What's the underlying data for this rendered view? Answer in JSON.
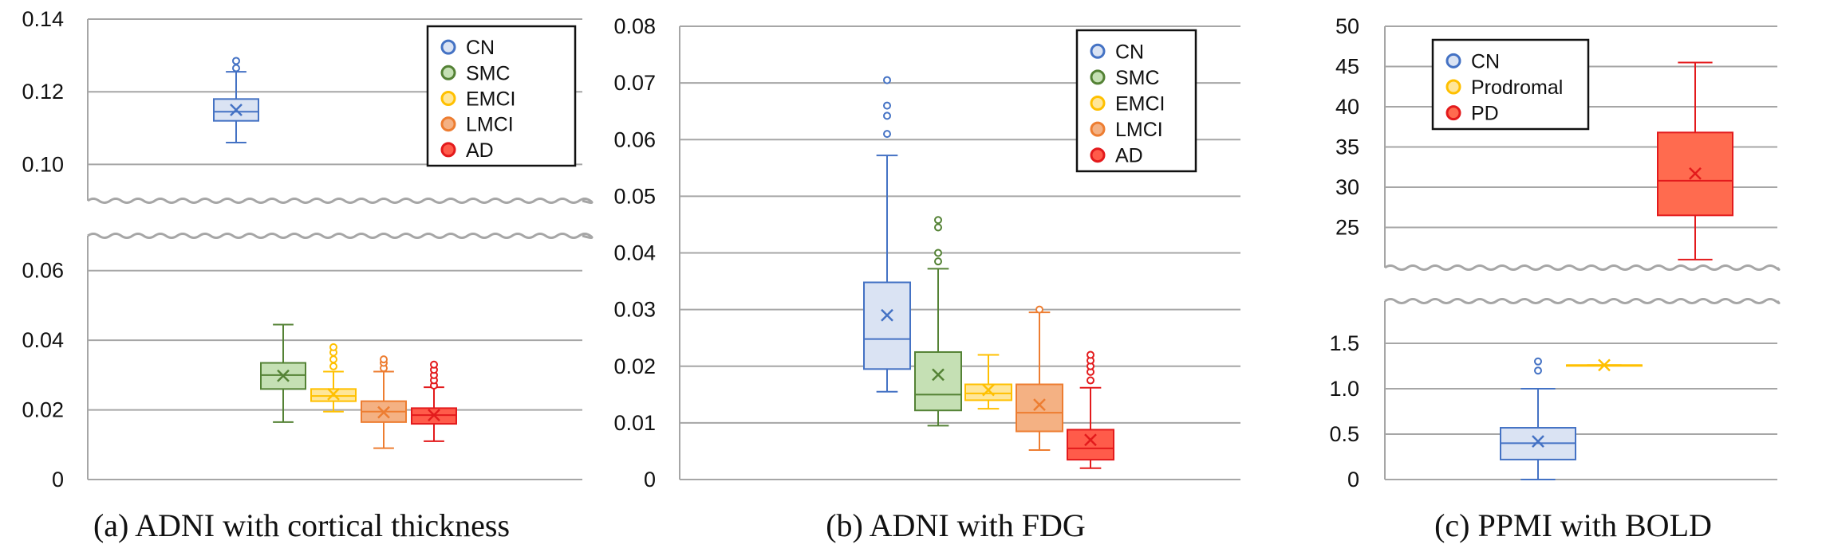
{
  "colors": {
    "CN": {
      "stroke": "#4472C4",
      "fill": "#DAE3F3"
    },
    "SMC": {
      "stroke": "#548235",
      "fill": "#C5E0B4"
    },
    "EMCI": {
      "stroke": "#FFC000",
      "fill": "#FFE699"
    },
    "LMCI": {
      "stroke": "#ED7D31",
      "fill": "#F4B183"
    },
    "AD": {
      "stroke": "#E31A1C",
      "fill": "#FF5B4A"
    },
    "Prodromal": {
      "stroke": "#FFC000",
      "fill": "#FFE699"
    },
    "PD": {
      "stroke": "#E31A1C",
      "fill": "#FF6B4F"
    }
  },
  "chart_data": [
    {
      "type": "box",
      "caption": "(a) ADNI with cortical thickness",
      "axis_break": true,
      "y_upper": {
        "range": [
          0.09,
          0.14
        ],
        "ticks": [
          "0.14",
          "0.12",
          "0.10"
        ],
        "tick_values": [
          0.14,
          0.12,
          0.1
        ]
      },
      "y_lower": {
        "range": [
          0,
          0.07
        ],
        "ticks": [
          "0.06",
          "0.04",
          "0.02",
          "0"
        ],
        "tick_values": [
          0.06,
          0.04,
          0.02,
          0
        ]
      },
      "legend": [
        "CN",
        "SMC",
        "EMCI",
        "LMCI",
        "AD"
      ],
      "series": [
        {
          "name": "CN",
          "min": 0.106,
          "q1": 0.112,
          "median": 0.1145,
          "q3": 0.118,
          "max": 0.1255,
          "mean": 0.115,
          "outliers": [
            0.1265,
            0.1285
          ]
        },
        {
          "name": "SMC",
          "min": 0.0165,
          "q1": 0.026,
          "median": 0.03,
          "q3": 0.0335,
          "max": 0.0445,
          "mean": 0.0298,
          "outliers": []
        },
        {
          "name": "EMCI",
          "min": 0.0195,
          "q1": 0.0225,
          "median": 0.024,
          "q3": 0.026,
          "max": 0.031,
          "mean": 0.0245,
          "outliers": [
            0.0325,
            0.0345,
            0.0365,
            0.038
          ]
        },
        {
          "name": "LMCI",
          "min": 0.009,
          "q1": 0.0165,
          "median": 0.0195,
          "q3": 0.0225,
          "max": 0.031,
          "mean": 0.0193,
          "outliers": [
            0.032,
            0.0335,
            0.0345
          ]
        },
        {
          "name": "AD",
          "min": 0.011,
          "q1": 0.016,
          "median": 0.0185,
          "q3": 0.0205,
          "max": 0.0265,
          "mean": 0.0185,
          "outliers": [
            0.027,
            0.0285,
            0.03,
            0.0315,
            0.033
          ]
        }
      ]
    },
    {
      "type": "box",
      "caption": "(b) ADNI with FDG",
      "axis_break": false,
      "y": {
        "range": [
          0,
          0.08
        ],
        "ticks": [
          "0.08",
          "0.07",
          "0.06",
          "0.05",
          "0.04",
          "0.03",
          "0.02",
          "0.01",
          "0"
        ],
        "tick_values": [
          0.08,
          0.07,
          0.06,
          0.05,
          0.04,
          0.03,
          0.02,
          0.01,
          0
        ]
      },
      "legend": [
        "CN",
        "SMC",
        "EMCI",
        "LMCI",
        "AD"
      ],
      "series": [
        {
          "name": "CN",
          "min": 0.0155,
          "q1": 0.0195,
          "median": 0.0248,
          "q3": 0.0348,
          "max": 0.0572,
          "mean": 0.029,
          "outliers": [
            0.061,
            0.0642,
            0.066,
            0.0705
          ]
        },
        {
          "name": "SMC",
          "min": 0.0095,
          "q1": 0.0122,
          "median": 0.015,
          "q3": 0.0225,
          "max": 0.0372,
          "mean": 0.0185,
          "outliers": [
            0.0385,
            0.04,
            0.0445,
            0.0458
          ]
        },
        {
          "name": "EMCI",
          "min": 0.0125,
          "q1": 0.014,
          "median": 0.0152,
          "q3": 0.0168,
          "max": 0.022,
          "mean": 0.0158,
          "outliers": []
        },
        {
          "name": "LMCI",
          "min": 0.0052,
          "q1": 0.0085,
          "median": 0.0118,
          "q3": 0.0168,
          "max": 0.0295,
          "mean": 0.0132,
          "outliers": [
            0.03
          ]
        },
        {
          "name": "AD",
          "min": 0.002,
          "q1": 0.0035,
          "median": 0.0055,
          "q3": 0.0088,
          "max": 0.0162,
          "mean": 0.007,
          "outliers": [
            0.0175,
            0.019,
            0.02,
            0.021,
            0.022
          ]
        }
      ]
    },
    {
      "type": "box",
      "caption": "(c) PPMI with BOLD",
      "axis_break": true,
      "y_upper": {
        "range": [
          20,
          50
        ],
        "ticks": [
          "50",
          "45",
          "40",
          "35",
          "30",
          "25"
        ],
        "tick_values": [
          50,
          45,
          40,
          35,
          30,
          25
        ]
      },
      "y_lower": {
        "range": [
          0,
          2
        ],
        "ticks": [
          "1.5",
          "1.0",
          "0.5",
          "0"
        ],
        "tick_values": [
          1.5,
          1.0,
          0.5,
          0
        ]
      },
      "legend": [
        "CN",
        "Prodromal",
        "PD"
      ],
      "series": [
        {
          "name": "CN",
          "min": 0.0,
          "q1": 0.22,
          "median": 0.4,
          "q3": 0.57,
          "max": 1.0,
          "mean": 0.42,
          "outliers": [
            1.2,
            1.3
          ]
        },
        {
          "name": "Prodromal",
          "min": 1.26,
          "q1": 1.26,
          "median": 1.26,
          "q3": 1.26,
          "max": 1.26,
          "mean": 1.26,
          "outliers": []
        },
        {
          "name": "PD",
          "min": 21.0,
          "q1": 26.5,
          "median": 30.8,
          "q3": 36.8,
          "max": 45.5,
          "mean": 31.7,
          "outliers": []
        }
      ]
    }
  ]
}
